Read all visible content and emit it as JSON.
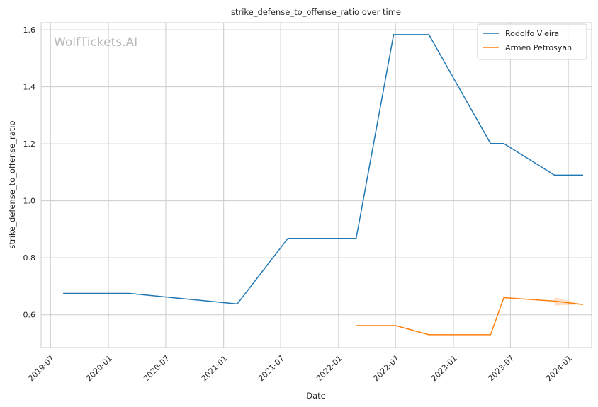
{
  "chart_data": {
    "type": "line",
    "title": "strike_defense_to_offense_ratio over time",
    "xlabel": "Date",
    "ylabel": "strike_defense_to_offense_ratio",
    "watermark": "WolfTickets.AI",
    "x_ticks": [
      "2019-07",
      "2020-01",
      "2020-07",
      "2021-01",
      "2021-07",
      "2022-01",
      "2022-07",
      "2023-01",
      "2023-07",
      "2024-01"
    ],
    "y_ticks": [
      "0.6",
      "0.8",
      "1.0",
      "1.2",
      "1.4",
      "1.6"
    ],
    "xlim": [
      "2019-06-01",
      "2024-03-15"
    ],
    "ylim": [
      0.485,
      1.625
    ],
    "grid": true,
    "legend_position": "top-right",
    "series": [
      {
        "name": "Rodolfo Vieira",
        "color": "#1f77b4",
        "points": [
          [
            "2019-08-10",
            0.675
          ],
          [
            "2020-03-07",
            0.675
          ],
          [
            "2021-02-13",
            0.638
          ],
          [
            "2021-07-24",
            0.868
          ],
          [
            "2022-02-26",
            0.868
          ],
          [
            "2022-06-25",
            1.583
          ],
          [
            "2022-10-15",
            1.583
          ],
          [
            "2023-04-29",
            1.201
          ],
          [
            "2023-06-10",
            1.201
          ],
          [
            "2023-11-18",
            1.09
          ],
          [
            "2024-02-17",
            1.09
          ]
        ]
      },
      {
        "name": "Armen Petrosyan",
        "color": "#ff7f0e",
        "points": [
          [
            "2022-02-26",
            0.562
          ],
          [
            "2022-07-02",
            0.562
          ],
          [
            "2022-10-15",
            0.53
          ],
          [
            "2023-04-29",
            0.53
          ],
          [
            "2023-06-10",
            0.66
          ],
          [
            "2023-11-18",
            0.648
          ],
          [
            "2024-02-17",
            0.636
          ]
        ],
        "band": [
          [
            "2023-11-18",
            0.633,
            0.661
          ],
          [
            "2024-02-17",
            0.636,
            0.636
          ]
        ]
      }
    ]
  }
}
